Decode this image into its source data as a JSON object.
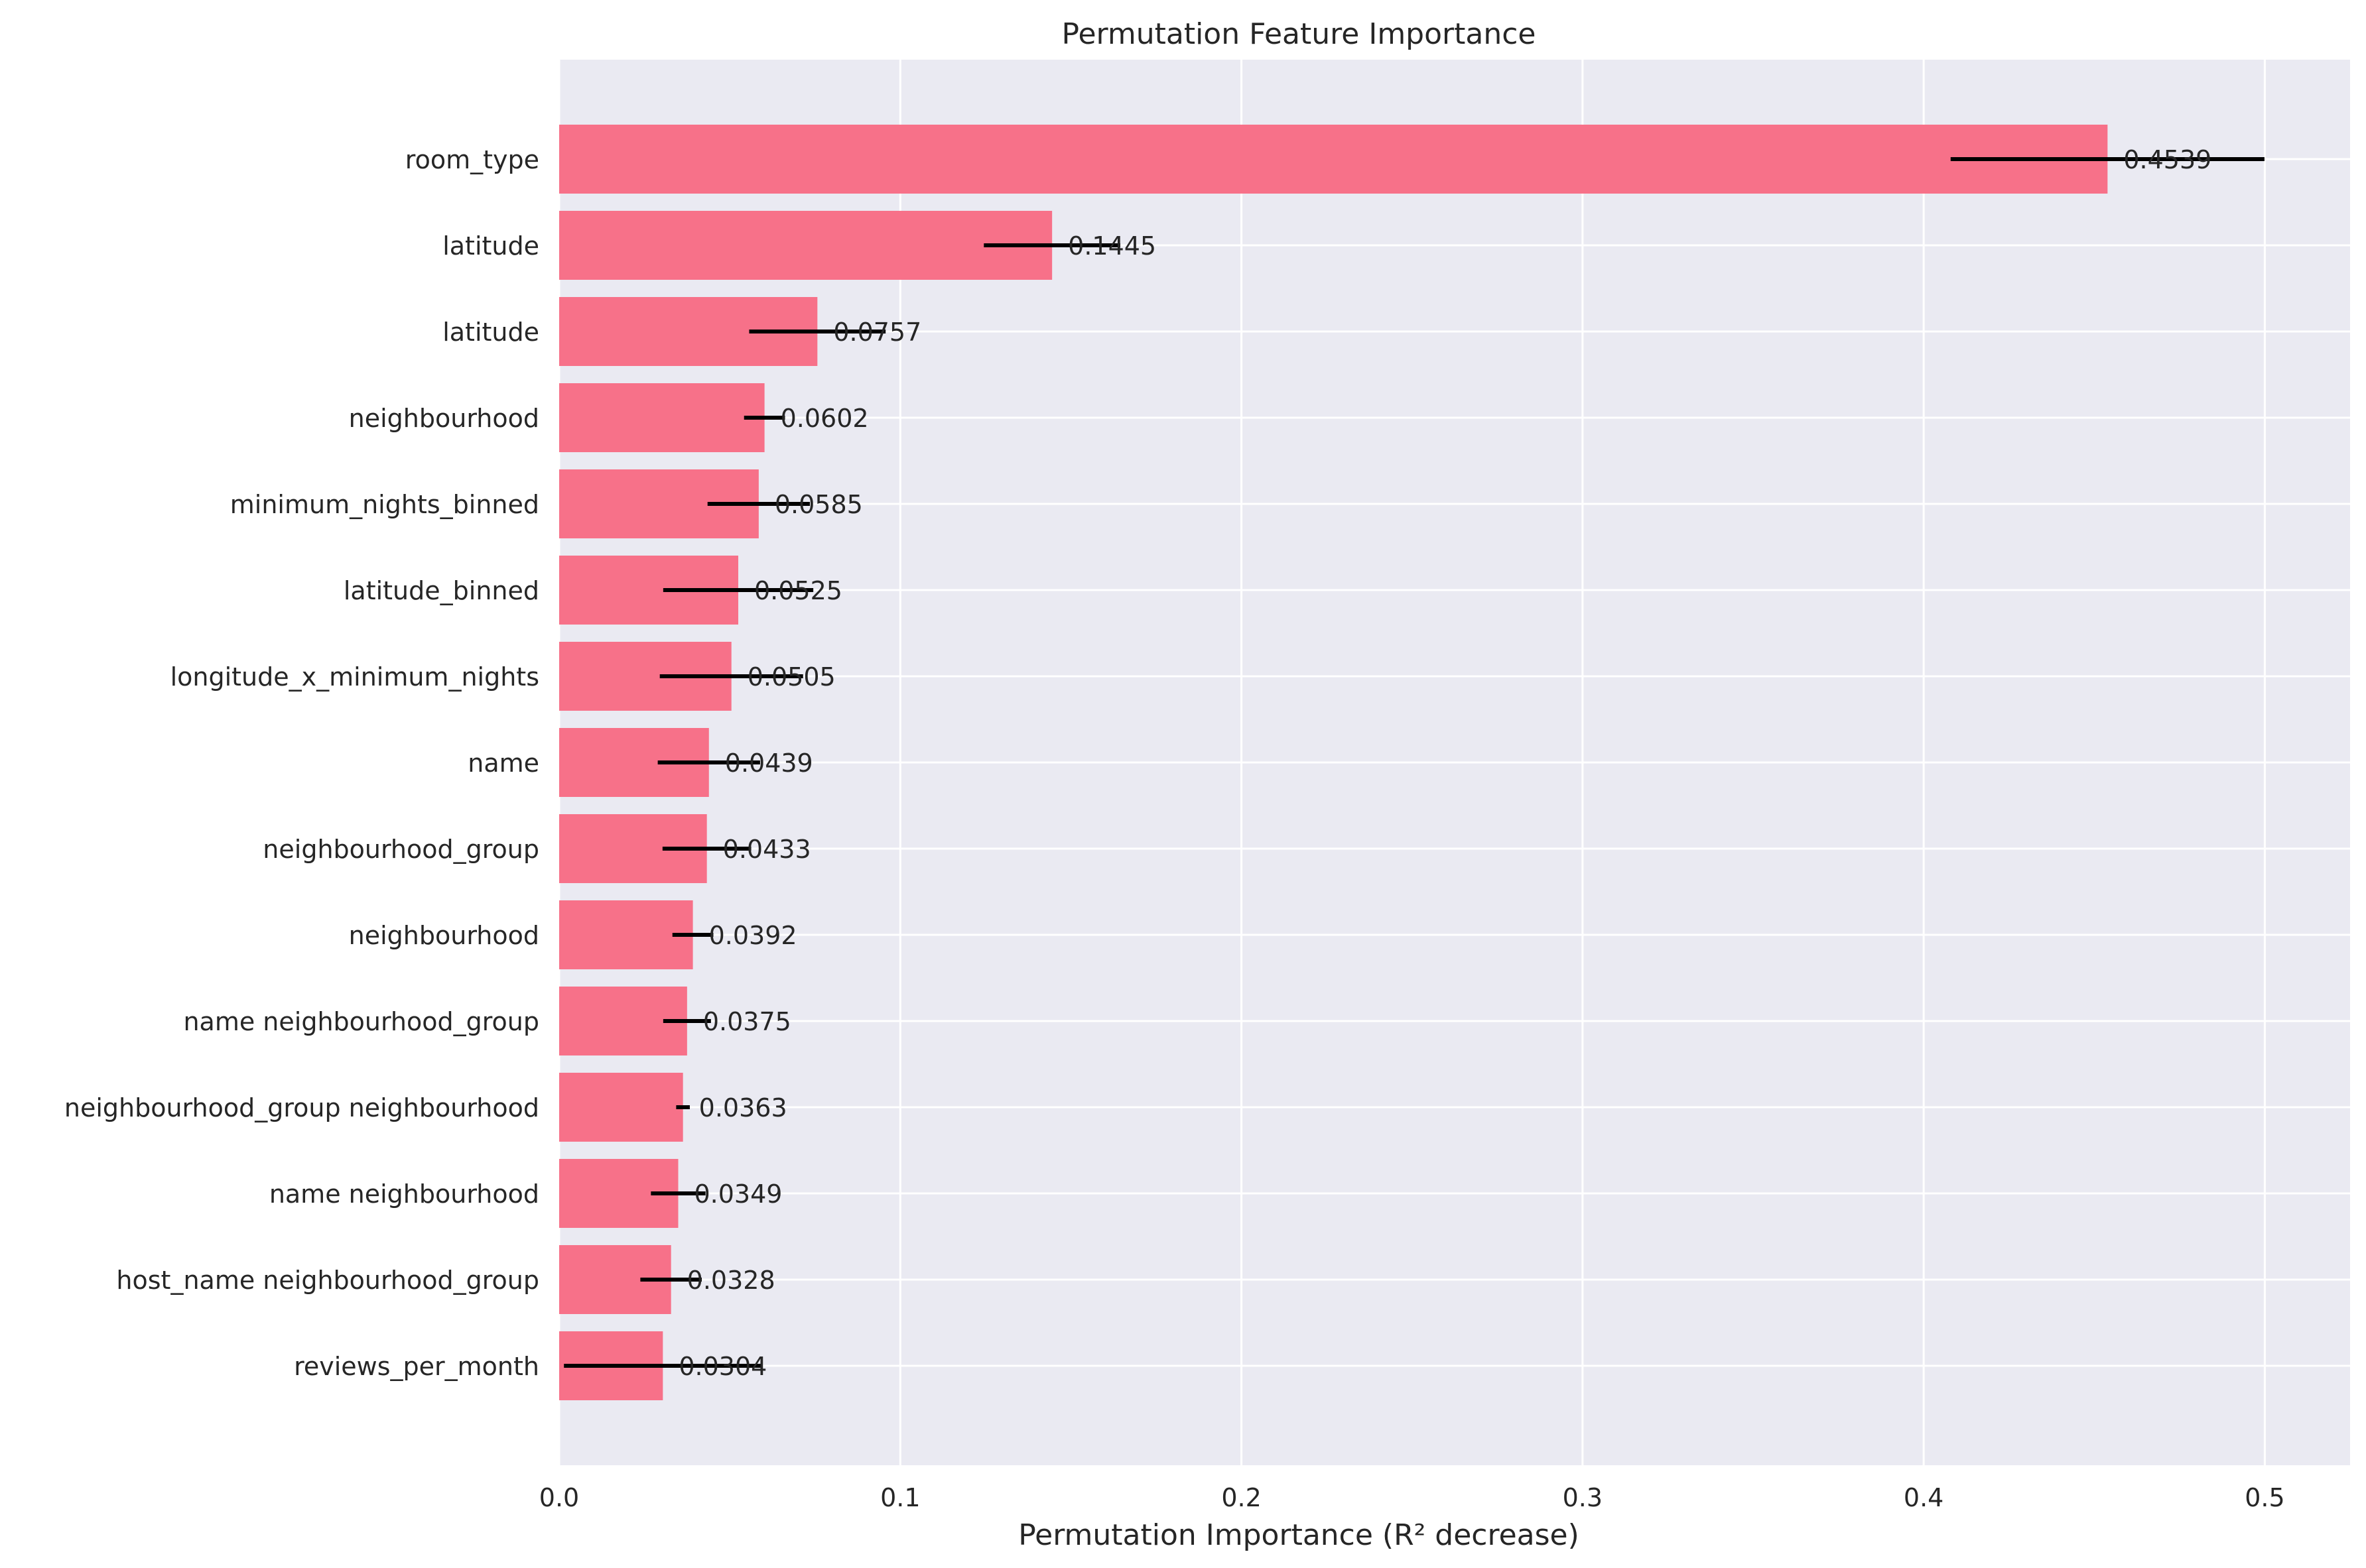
{
  "chart_data": {
    "type": "bar",
    "orientation": "horizontal",
    "title": "Permutation Feature Importance",
    "xlabel": "Permutation Importance (R² decrease)",
    "ylabel": "",
    "xlim": [
      0,
      0.525
    ],
    "xticks": [
      0.0,
      0.1,
      0.2,
      0.3,
      0.4,
      0.5
    ],
    "xtick_labels": [
      "0.0",
      "0.1",
      "0.2",
      "0.3",
      "0.4",
      "0.5"
    ],
    "grid": true,
    "bar_color": "#f77189",
    "background_color": "#eaeaf2",
    "categories": [
      "room_type",
      "latitude",
      "latitude",
      "neighbourhood",
      "minimum_nights_binned",
      "latitude_binned",
      "longitude_x_minimum_nights",
      "name",
      "neighbourhood_group",
      "neighbourhood",
      "name neighbourhood_group",
      "neighbourhood_group neighbourhood",
      "name neighbourhood",
      "host_name neighbourhood_group",
      "reviews_per_month"
    ],
    "values": [
      0.4539,
      0.1445,
      0.0757,
      0.0602,
      0.0585,
      0.0525,
      0.0505,
      0.0439,
      0.0433,
      0.0392,
      0.0375,
      0.0363,
      0.0349,
      0.0328,
      0.0304
    ],
    "value_labels": [
      "0.4539",
      "0.1445",
      "0.0757",
      "0.0602",
      "0.0585",
      "0.0525",
      "0.0505",
      "0.0439",
      "0.0433",
      "0.0392",
      "0.0375",
      "0.0363",
      "0.0349",
      "0.0328",
      "0.0304"
    ],
    "error": [
      0.046,
      0.02,
      0.02,
      0.006,
      0.015,
      0.022,
      0.021,
      0.015,
      0.013,
      0.006,
      0.007,
      0.002,
      0.008,
      0.009,
      0.029
    ]
  }
}
